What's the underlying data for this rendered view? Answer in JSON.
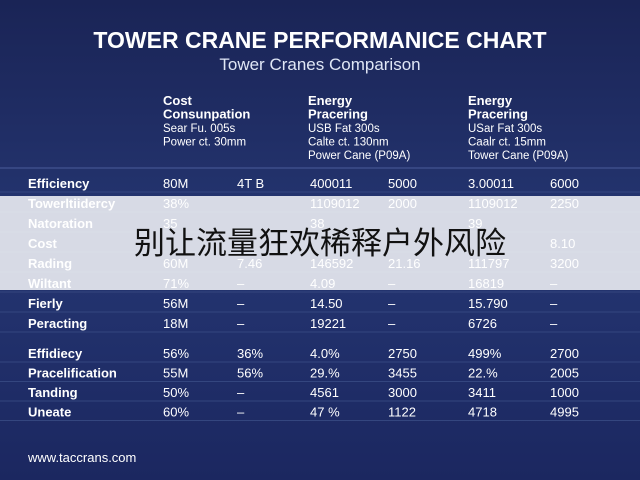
{
  "title": "TOWER CRANE PERFORMANICE CHART",
  "subtitle": "Tower Cranes Comparison",
  "headers": [
    [
      "Cost",
      "Consunpation",
      "Sear Fu. 005s",
      "Power ct. 30mm"
    ],
    [
      "Energy",
      "Pracering",
      "USB Fat 300s",
      "Calte ct. 130nm",
      "Power Cane (P09A)"
    ],
    [
      "Energy",
      "Pracering",
      "USar Fat 300s",
      "Caalr ct. 15mm",
      "Tower Cane (P09A)"
    ]
  ],
  "sections": [
    [
      {
        "label": "Efficiency",
        "cells": [
          "80M",
          "4T B",
          "400011",
          "5000",
          "3.00011",
          "6000"
        ]
      },
      {
        "label": "Towerltiidercy",
        "cells": [
          "38%",
          null,
          "1109012",
          "2000",
          "1109012",
          "2250"
        ]
      },
      {
        "label": "Natoration",
        "cells": [
          "35",
          null,
          "38",
          null,
          "39",
          null
        ]
      },
      {
        "label": "Cost",
        "cells": [
          null,
          null,
          null,
          null,
          null,
          "8.10"
        ]
      },
      {
        "label": "Rading",
        "cells": [
          "60M",
          "7.46",
          "146592",
          "21.16",
          "111797",
          "3200"
        ]
      },
      {
        "label": "Wiltant",
        "cells": [
          "71%",
          "–",
          "4.09",
          "–",
          "16819",
          "–"
        ]
      },
      {
        "label": "Fierly",
        "cells": [
          "56M",
          "–",
          "14.50",
          "–",
          "15.790",
          "–"
        ]
      },
      {
        "label": "Peracting",
        "cells": [
          "18M",
          "–",
          "19221",
          "–",
          "6726",
          "–"
        ]
      }
    ],
    [
      {
        "label": "Effidiecy",
        "cells": [
          "56%",
          "36%",
          "4.0%",
          "2750",
          "499%",
          "2700"
        ]
      },
      {
        "label": "Pracelification",
        "cells": [
          "55M",
          "56%",
          "29.%",
          "3455",
          "22.%",
          "2005"
        ]
      },
      {
        "label": "Tanding",
        "cells": [
          "50%",
          "–",
          "4561",
          "3000",
          "3411",
          "1000"
        ]
      },
      {
        "label": "Uneate",
        "cells": [
          "60%",
          "–",
          "47 %",
          "1122",
          "4718",
          "4995"
        ]
      }
    ]
  ],
  "footer": "www.taccrans.com",
  "banner": "别让流量狂欢稀释户外风险"
}
